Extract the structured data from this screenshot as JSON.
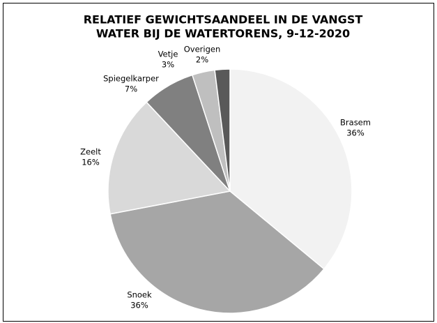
{
  "chart_data": {
    "type": "pie",
    "title": [
      "RELATIEF GEWICHTSAANDEEL IN DE VANGST",
      "WATER BIJ DE WATERTORENS, 9-12-2020"
    ],
    "categories": [
      "Brasem",
      "Snoek",
      "Zeelt",
      "Spiegelkarper",
      "Vetje",
      "Overigen"
    ],
    "values": [
      36,
      36,
      16,
      7,
      3,
      2
    ],
    "value_labels": [
      "36%",
      "36%",
      "16%",
      "7%",
      "3%",
      "2%"
    ],
    "colors": [
      "#f2f2f2",
      "#a6a6a6",
      "#d9d9d9",
      "#808080",
      "#bfbfbf",
      "#595959"
    ]
  }
}
